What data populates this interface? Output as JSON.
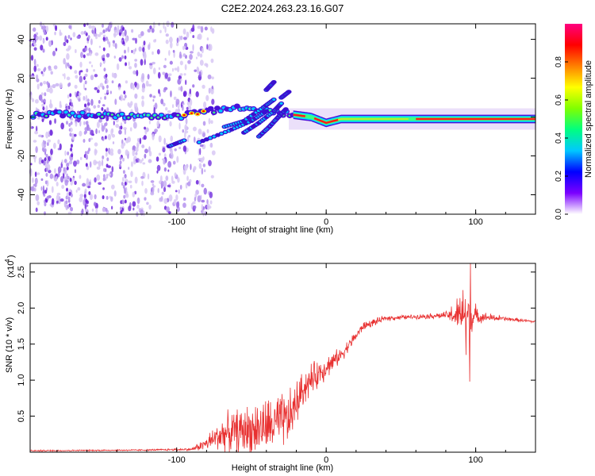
{
  "title": "C2E2.2024.263.23.16.G07",
  "chart_data": [
    {
      "type": "heatmap",
      "xlabel": "Height of straight line (km)",
      "ylabel": "Frequency (Hz)",
      "xlim": [
        -198,
        140
      ],
      "ylim": [
        -50,
        48
      ],
      "x_ticks": [
        -100,
        0,
        100
      ],
      "y_ticks": [
        -40,
        -20,
        0,
        20,
        40
      ],
      "colorbar": {
        "label": "Normalized spectral amplitude",
        "range": [
          0.0,
          1.0
        ],
        "ticks": [
          "0.0",
          "0.2",
          "0.4",
          "0.6",
          "0.8"
        ],
        "colors": [
          "#ffffff",
          "#7b00ff",
          "#0000ff",
          "#00c8ff",
          "#00ff80",
          "#80ff00",
          "#ffff00",
          "#ff8000",
          "#ff0000",
          "#ff0080"
        ]
      },
      "ridge": [
        {
          "x": -195,
          "y": 2
        },
        {
          "x": -160,
          "y": 1
        },
        {
          "x": -120,
          "y": 0
        },
        {
          "x": -100,
          "y": 0
        },
        {
          "x": -80,
          "y": 3
        },
        {
          "x": -62,
          "y": 5
        },
        {
          "x": -30,
          "y": 2
        },
        {
          "x": -10,
          "y": 0
        },
        {
          "x": 0,
          "y": -3
        },
        {
          "x": 10,
          "y": -1
        },
        {
          "x": 50,
          "y": -1
        },
        {
          "x": 100,
          "y": -1
        },
        {
          "x": 140,
          "y": -1
        }
      ]
    },
    {
      "type": "line",
      "xlabel": "Height of straight line (km)",
      "ylabel": "SNR (10 * v/v)",
      "y_multiplier": "(x10",
      "y_multiplier_exp": "4",
      "xlim": [
        -198,
        140
      ],
      "ylim": [
        0,
        2.62
      ],
      "x_ticks": [
        -100,
        0,
        100
      ],
      "y_ticks": [
        "0.5",
        "1.0",
        "1.5",
        "2.0",
        "2.5"
      ],
      "color": "#e83030",
      "envelope": [
        {
          "x": -198,
          "base": 0.02,
          "amp": 0.01
        },
        {
          "x": -120,
          "base": 0.03,
          "amp": 0.01
        },
        {
          "x": -90,
          "base": 0.04,
          "amp": 0.02
        },
        {
          "x": -80,
          "base": 0.12,
          "amp": 0.1
        },
        {
          "x": -70,
          "base": 0.25,
          "amp": 0.25
        },
        {
          "x": -55,
          "base": 0.3,
          "amp": 0.35
        },
        {
          "x": -40,
          "base": 0.35,
          "amp": 0.4
        },
        {
          "x": -25,
          "base": 0.45,
          "amp": 0.4
        },
        {
          "x": -15,
          "base": 0.9,
          "amp": 0.25
        },
        {
          "x": -5,
          "base": 1.1,
          "amp": 0.2
        },
        {
          "x": 10,
          "base": 1.35,
          "amp": 0.1
        },
        {
          "x": 25,
          "base": 1.75,
          "amp": 0.06
        },
        {
          "x": 40,
          "base": 1.86,
          "amp": 0.04
        },
        {
          "x": 60,
          "base": 1.88,
          "amp": 0.03
        },
        {
          "x": 80,
          "base": 1.9,
          "amp": 0.05
        },
        {
          "x": 88,
          "base": 1.9,
          "amp": 0.25
        },
        {
          "x": 95,
          "base": 1.88,
          "amp": 0.4
        },
        {
          "x": 102,
          "base": 1.88,
          "amp": 0.08
        },
        {
          "x": 120,
          "base": 1.85,
          "amp": 0.03
        },
        {
          "x": 140,
          "base": 1.81,
          "amp": 0.02
        }
      ],
      "spikes": [
        {
          "x": 96.5,
          "y": 2.62
        },
        {
          "x": 96.0,
          "y": 0.98
        },
        {
          "x": 91.5,
          "y": 2.25
        },
        {
          "x": 93.5,
          "y": 1.35
        }
      ]
    }
  ]
}
